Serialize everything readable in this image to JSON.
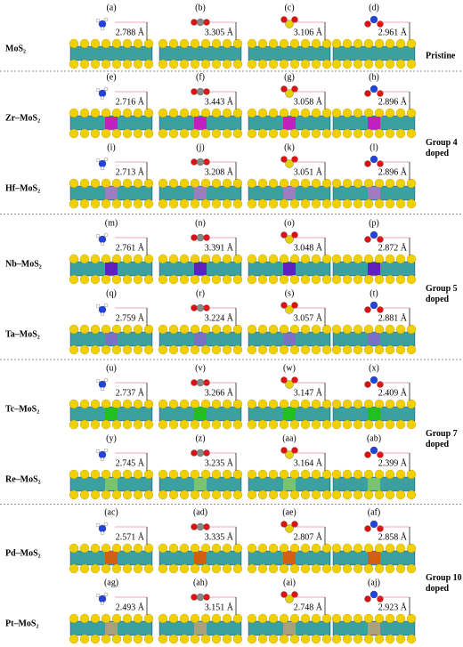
{
  "rows": [
    {
      "label": "MoS₂",
      "panels": [
        {
          "letter": "(a)",
          "distance": "2.788 Å"
        },
        {
          "letter": "(b)",
          "distance": "3.305 Å"
        },
        {
          "letter": "(c)",
          "distance": "3.106 Å"
        },
        {
          "letter": "(d)",
          "distance": "2.961 Å"
        }
      ]
    },
    {
      "label": "Zr–MoS₂",
      "panels": [
        {
          "letter": "(e)",
          "distance": "2.716 Å"
        },
        {
          "letter": "(f)",
          "distance": "3.443 Å"
        },
        {
          "letter": "(g)",
          "distance": "3.058 Å"
        },
        {
          "letter": "(h)",
          "distance": "2.896 Å"
        }
      ]
    },
    {
      "label": "Hf–MoS₂",
      "panels": [
        {
          "letter": "(i)",
          "distance": "2.713 Å"
        },
        {
          "letter": "(j)",
          "distance": "3.208 Å"
        },
        {
          "letter": "(k)",
          "distance": "3.051 Å"
        },
        {
          "letter": "(l)",
          "distance": "2.896 Å"
        }
      ]
    },
    {
      "label": "Nb–MoS₂",
      "panels": [
        {
          "letter": "(m)",
          "distance": "2.761 Å"
        },
        {
          "letter": "(n)",
          "distance": "3.391 Å"
        },
        {
          "letter": "(o)",
          "distance": "3.048 Å"
        },
        {
          "letter": "(p)",
          "distance": "2.872 Å"
        }
      ]
    },
    {
      "label": "Ta–MoS₂",
      "panels": [
        {
          "letter": "(q)",
          "distance": "2.759 Å"
        },
        {
          "letter": "(r)",
          "distance": "3.224 Å"
        },
        {
          "letter": "(s)",
          "distance": "3.057 Å"
        },
        {
          "letter": "(t)",
          "distance": "2.881 Å"
        }
      ]
    },
    {
      "label": "Tc–MoS₂",
      "panels": [
        {
          "letter": "(u)",
          "distance": "2.737 Å"
        },
        {
          "letter": "(v)",
          "distance": "3.266 Å"
        },
        {
          "letter": "(w)",
          "distance": "3.147 Å"
        },
        {
          "letter": "(x)",
          "distance": "2.409 Å"
        }
      ]
    },
    {
      "label": "Re–MoS₂",
      "panels": [
        {
          "letter": "(y)",
          "distance": "2.745 Å"
        },
        {
          "letter": "(z)",
          "distance": "3.235 Å"
        },
        {
          "letter": "(aa)",
          "distance": "3.164 Å"
        },
        {
          "letter": "(ab)",
          "distance": "2.399 Å"
        }
      ]
    },
    {
      "label": "Pd–MoS₂",
      "panels": [
        {
          "letter": "(ac)",
          "distance": "2.571 Å"
        },
        {
          "letter": "(ad)",
          "distance": "3.335 Å"
        },
        {
          "letter": "(ae)",
          "distance": "2.807 Å"
        },
        {
          "letter": "(af)",
          "distance": "2.858 Å"
        }
      ]
    },
    {
      "label": "Pt–MoS₂",
      "panels": [
        {
          "letter": "(ag)",
          "distance": "2.493 Å"
        },
        {
          "letter": "(ah)",
          "distance": "3.151 Å"
        },
        {
          "letter": "(ai)",
          "distance": "2.748 Å"
        },
        {
          "letter": "(aj)",
          "distance": "2.923 Å"
        }
      ]
    }
  ],
  "groups": [
    {
      "lines": [
        "Pristine"
      ]
    },
    {
      "lines": [
        "Group 4",
        "doped"
      ]
    },
    {
      "lines": [
        "Group 5",
        "doped"
      ]
    },
    {
      "lines": [
        "Group 7",
        "doped"
      ]
    },
    {
      "lines": [
        "Group 10",
        "doped"
      ]
    }
  ]
}
